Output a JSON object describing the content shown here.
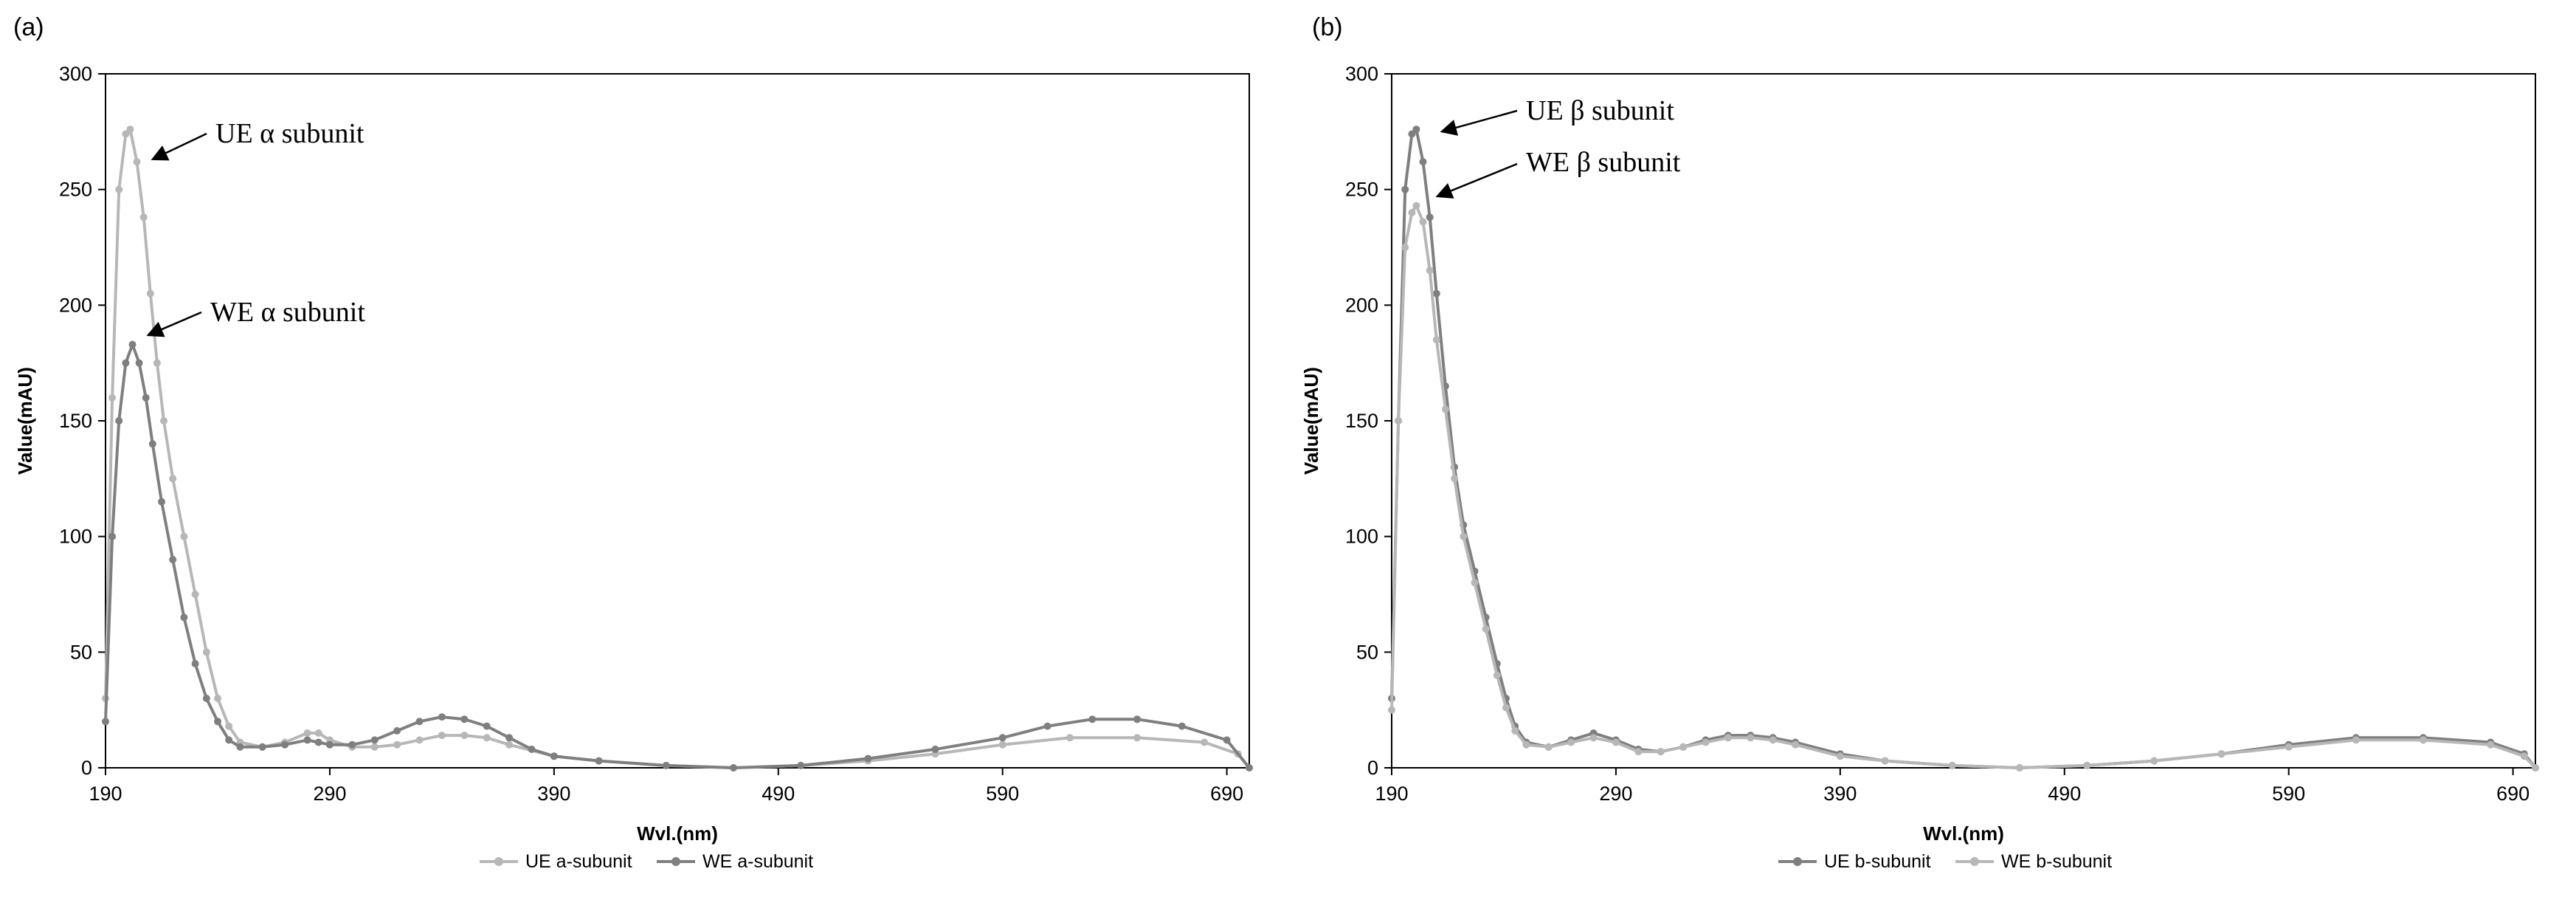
{
  "chart_data": [
    {
      "type": "line",
      "panel_label": "(a)",
      "xlabel": "Wvl.(nm)",
      "ylabel": "Value(mAU)",
      "xlim": [
        190,
        700
      ],
      "ylim": [
        0,
        300
      ],
      "xticks": [
        "190",
        "290",
        "390",
        "490",
        "590",
        "690"
      ],
      "yticks": [
        "0",
        "50",
        "100",
        "150",
        "200",
        "250",
        "300"
      ],
      "grid": false,
      "legend_position": "bottom",
      "annotations": [
        {
          "text": "UE α subunit",
          "series": "UE a-subunit",
          "x": 205,
          "y": 263
        },
        {
          "text": "WE α subunit",
          "series": "WE a-subunit",
          "x": 203,
          "y": 187
        }
      ],
      "series": [
        {
          "name": "UE a-subunit",
          "color": "#b7b7b7",
          "points": [
            [
              190,
              30
            ],
            [
              193,
              160
            ],
            [
              196,
              250
            ],
            [
              199,
              274
            ],
            [
              201,
              276
            ],
            [
              204,
              262
            ],
            [
              207,
              238
            ],
            [
              210,
              205
            ],
            [
              213,
              175
            ],
            [
              216,
              150
            ],
            [
              220,
              125
            ],
            [
              225,
              100
            ],
            [
              230,
              75
            ],
            [
              235,
              50
            ],
            [
              240,
              30
            ],
            [
              245,
              18
            ],
            [
              250,
              11
            ],
            [
              260,
              9
            ],
            [
              270,
              11
            ],
            [
              280,
              15
            ],
            [
              285,
              15
            ],
            [
              290,
              12
            ],
            [
              300,
              9
            ],
            [
              310,
              9
            ],
            [
              320,
              10
            ],
            [
              330,
              12
            ],
            [
              340,
              14
            ],
            [
              350,
              14
            ],
            [
              360,
              13
            ],
            [
              370,
              10
            ],
            [
              390,
              5
            ],
            [
              410,
              3
            ],
            [
              440,
              1
            ],
            [
              470,
              0
            ],
            [
              500,
              1
            ],
            [
              530,
              3
            ],
            [
              560,
              6
            ],
            [
              590,
              10
            ],
            [
              620,
              13
            ],
            [
              650,
              13
            ],
            [
              680,
              11
            ],
            [
              695,
              6
            ],
            [
              700,
              0
            ]
          ]
        },
        {
          "name": "WE a-subunit",
          "color": "#7f7f7f",
          "points": [
            [
              190,
              20
            ],
            [
              193,
              100
            ],
            [
              196,
              150
            ],
            [
              199,
              175
            ],
            [
              202,
              183
            ],
            [
              205,
              175
            ],
            [
              208,
              160
            ],
            [
              211,
              140
            ],
            [
              215,
              115
            ],
            [
              220,
              90
            ],
            [
              225,
              65
            ],
            [
              230,
              45
            ],
            [
              235,
              30
            ],
            [
              240,
              20
            ],
            [
              245,
              12
            ],
            [
              250,
              9
            ],
            [
              260,
              9
            ],
            [
              270,
              10
            ],
            [
              280,
              12
            ],
            [
              285,
              11
            ],
            [
              290,
              10
            ],
            [
              300,
              10
            ],
            [
              310,
              12
            ],
            [
              320,
              16
            ],
            [
              330,
              20
            ],
            [
              340,
              22
            ],
            [
              350,
              21
            ],
            [
              360,
              18
            ],
            [
              370,
              13
            ],
            [
              380,
              8
            ],
            [
              390,
              5
            ],
            [
              410,
              3
            ],
            [
              440,
              1
            ],
            [
              470,
              0
            ],
            [
              500,
              1
            ],
            [
              530,
              4
            ],
            [
              560,
              8
            ],
            [
              590,
              13
            ],
            [
              610,
              18
            ],
            [
              630,
              21
            ],
            [
              650,
              21
            ],
            [
              670,
              18
            ],
            [
              690,
              12
            ],
            [
              700,
              0
            ]
          ]
        }
      ]
    },
    {
      "type": "line",
      "panel_label": "(b)",
      "xlabel": "Wvl.(nm)",
      "ylabel": "Value(mAU)",
      "xlim": [
        190,
        700
      ],
      "ylim": [
        0,
        300
      ],
      "xticks": [
        "190",
        "290",
        "390",
        "490",
        "590",
        "690"
      ],
      "yticks": [
        "0",
        "50",
        "100",
        "150",
        "200",
        "250",
        "300"
      ],
      "grid": false,
      "legend_position": "bottom",
      "annotations": [
        {
          "text": "UE β subunit",
          "series": "UE b-subunit",
          "x": 207,
          "y": 275
        },
        {
          "text": "WE β subunit",
          "series": "WE b-subunit",
          "x": 205,
          "y": 247
        }
      ],
      "series": [
        {
          "name": "UE b-subunit",
          "color": "#7f7f7f",
          "points": [
            [
              190,
              30
            ],
            [
              193,
              150
            ],
            [
              196,
              250
            ],
            [
              199,
              274
            ],
            [
              201,
              276
            ],
            [
              204,
              262
            ],
            [
              207,
              238
            ],
            [
              210,
              205
            ],
            [
              214,
              165
            ],
            [
              218,
              130
            ],
            [
              222,
              105
            ],
            [
              227,
              85
            ],
            [
              232,
              65
            ],
            [
              237,
              45
            ],
            [
              241,
              30
            ],
            [
              245,
              18
            ],
            [
              250,
              11
            ],
            [
              260,
              9
            ],
            [
              270,
              12
            ],
            [
              280,
              15
            ],
            [
              290,
              12
            ],
            [
              300,
              8
            ],
            [
              310,
              7
            ],
            [
              320,
              9
            ],
            [
              330,
              12
            ],
            [
              340,
              14
            ],
            [
              350,
              14
            ],
            [
              360,
              13
            ],
            [
              370,
              11
            ],
            [
              390,
              6
            ],
            [
              410,
              3
            ],
            [
              440,
              1
            ],
            [
              470,
              0
            ],
            [
              500,
              1
            ],
            [
              530,
              3
            ],
            [
              560,
              6
            ],
            [
              590,
              10
            ],
            [
              620,
              13
            ],
            [
              650,
              13
            ],
            [
              680,
              11
            ],
            [
              695,
              6
            ],
            [
              700,
              0
            ]
          ]
        },
        {
          "name": "WE b-subunit",
          "color": "#b7b7b7",
          "points": [
            [
              190,
              25
            ],
            [
              193,
              150
            ],
            [
              196,
              225
            ],
            [
              199,
              240
            ],
            [
              201,
              243
            ],
            [
              204,
              236
            ],
            [
              207,
              215
            ],
            [
              210,
              185
            ],
            [
              214,
              155
            ],
            [
              218,
              125
            ],
            [
              222,
              100
            ],
            [
              227,
              80
            ],
            [
              232,
              60
            ],
            [
              237,
              40
            ],
            [
              241,
              26
            ],
            [
              245,
              16
            ],
            [
              250,
              10
            ],
            [
              260,
              9
            ],
            [
              270,
              11
            ],
            [
              280,
              13
            ],
            [
              290,
              11
            ],
            [
              300,
              7
            ],
            [
              310,
              7
            ],
            [
              320,
              9
            ],
            [
              330,
              11
            ],
            [
              340,
              13
            ],
            [
              350,
              13
            ],
            [
              360,
              12
            ],
            [
              370,
              10
            ],
            [
              390,
              5
            ],
            [
              410,
              3
            ],
            [
              440,
              1
            ],
            [
              470,
              0
            ],
            [
              500,
              1
            ],
            [
              530,
              3
            ],
            [
              560,
              6
            ],
            [
              590,
              9
            ],
            [
              620,
              12
            ],
            [
              650,
              12
            ],
            [
              680,
              10
            ],
            [
              695,
              5
            ],
            [
              700,
              0
            ]
          ]
        }
      ]
    }
  ]
}
